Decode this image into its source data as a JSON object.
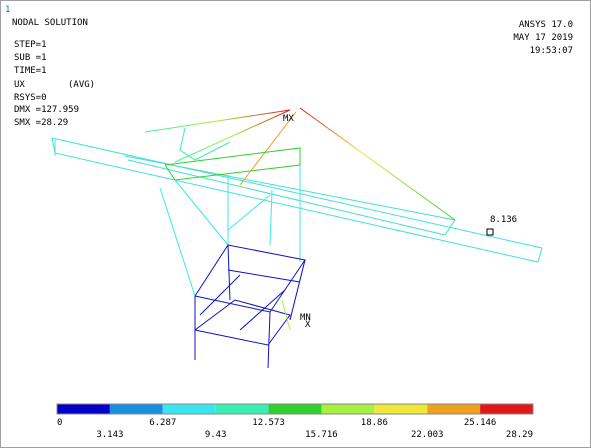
{
  "window_number": "1",
  "header": {
    "title": "NODAL SOLUTION",
    "product": "ANSYS 17.0",
    "date": "MAY 17 2019",
    "time": "19:53:07"
  },
  "info": {
    "step": "STEP=1",
    "sub": "SUB =1",
    "time": "TIME=1",
    "quantity": "UX",
    "averaging": "(AVG)",
    "rsys": "RSYS=0",
    "dmx": "DMX =127.959",
    "smx": "SMX =28.29"
  },
  "annotations": {
    "max": "MX",
    "min": "MN",
    "probe": "8.136",
    "axis": "X"
  },
  "legend": {
    "colors": [
      "#0000c8",
      "#1a8fe0",
      "#38e8f0",
      "#38f0b0",
      "#30d030",
      "#a8f040",
      "#f0e838",
      "#f0a020",
      "#e01818"
    ],
    "labels": [
      "0",
      "3.143",
      "6.287",
      "9.43",
      "12.573",
      "15.716",
      "18.86",
      "22.003",
      "25.146",
      "28.29"
    ]
  }
}
